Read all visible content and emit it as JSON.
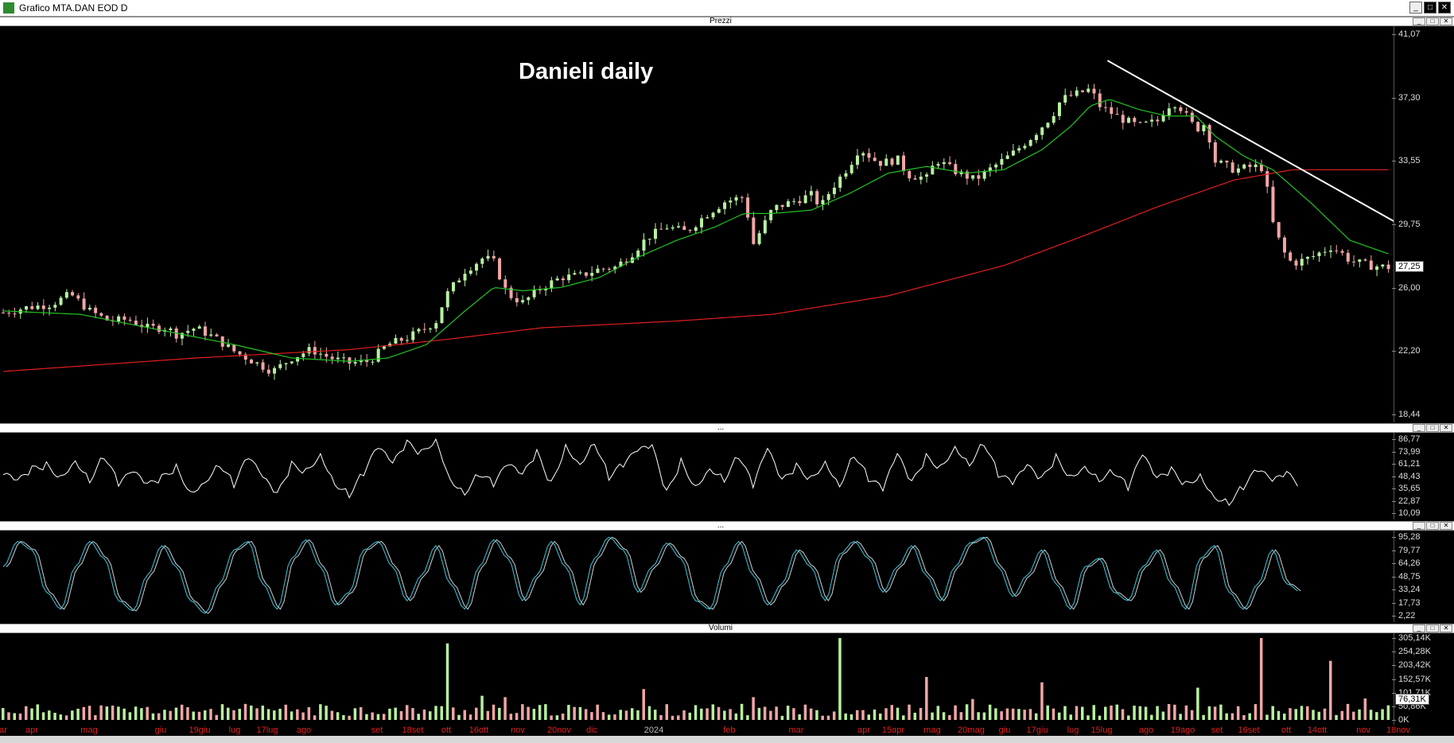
{
  "window": {
    "title": "Grafico MTA.DAN EOD D",
    "min_btn": "_",
    "max_btn": "□",
    "close_btn": "✕"
  },
  "panel_btns": {
    "min": "_",
    "max": "□",
    "close": "✕"
  },
  "panels": {
    "price": {
      "label": "Prezzi"
    },
    "rsi": {
      "label": "..."
    },
    "stoch": {
      "label": "..."
    },
    "volume": {
      "label": "Volumi"
    }
  },
  "chart_data": [
    {
      "type": "candlestick",
      "title": "Danieli daily",
      "yticks": [
        "41,07",
        "37,30",
        "33,55",
        "29,75",
        "26,00",
        "22,20",
        "18,44"
      ],
      "ylim": [
        18.44,
        41.07
      ],
      "current_value": "27,25",
      "colors": {
        "up": "#b8f0a0",
        "down": "#f0a6a6",
        "sma_short": "#22c422",
        "sma_long": "#e01f1f",
        "trendline": "#ffffff"
      },
      "close_approx": [
        [
          0,
          24.5
        ],
        [
          12,
          24.8
        ],
        [
          25,
          25.0
        ],
        [
          35,
          25.6
        ],
        [
          45,
          24.6
        ],
        [
          55,
          24.0
        ],
        [
          65,
          24.1
        ],
        [
          75,
          23.6
        ],
        [
          85,
          23.6
        ],
        [
          90,
          23.2
        ],
        [
          100,
          23.6
        ],
        [
          110,
          23.0
        ],
        [
          120,
          22.2
        ],
        [
          130,
          21.6
        ],
        [
          140,
          21.0
        ],
        [
          150,
          21.8
        ],
        [
          160,
          22.3
        ],
        [
          170,
          21.8
        ],
        [
          180,
          21.5
        ],
        [
          190,
          21.6
        ],
        [
          200,
          22.6
        ],
        [
          210,
          23.0
        ],
        [
          220,
          23.6
        ],
        [
          225,
          24.0
        ],
        [
          230,
          25.5
        ],
        [
          240,
          27.0
        ],
        [
          250,
          27.8
        ],
        [
          255,
          27.5
        ],
        [
          262,
          25.6
        ],
        [
          270,
          25.1
        ],
        [
          280,
          26.0
        ],
        [
          290,
          26.6
        ],
        [
          300,
          26.7
        ],
        [
          310,
          27.1
        ],
        [
          318,
          27.2
        ],
        [
          325,
          27.8
        ],
        [
          335,
          29.0
        ],
        [
          345,
          29.6
        ],
        [
          355,
          29.3
        ],
        [
          365,
          30.3
        ],
        [
          375,
          31.1
        ],
        [
          385,
          31.4
        ],
        [
          390,
          28.6
        ],
        [
          400,
          30.7
        ],
        [
          410,
          31.1
        ],
        [
          420,
          31.5
        ],
        [
          425,
          30.8
        ],
        [
          430,
          31.8
        ],
        [
          440,
          33.3
        ],
        [
          445,
          34.3
        ],
        [
          455,
          33.4
        ],
        [
          465,
          33.6
        ],
        [
          470,
          32.7
        ],
        [
          480,
          32.5
        ],
        [
          485,
          33.6
        ],
        [
          495,
          32.9
        ],
        [
          505,
          32.4
        ],
        [
          515,
          33.2
        ],
        [
          525,
          34.0
        ],
        [
          535,
          35.0
        ],
        [
          545,
          36.2
        ],
        [
          550,
          37.2
        ],
        [
          560,
          37.6
        ],
        [
          565,
          37.8
        ],
        [
          570,
          36.8
        ],
        [
          580,
          36.1
        ],
        [
          590,
          35.6
        ],
        [
          600,
          35.9
        ],
        [
          605,
          36.8
        ],
        [
          610,
          37.0
        ],
        [
          620,
          35.4
        ],
        [
          625,
          35.8
        ],
        [
          630,
          33.5
        ],
        [
          640,
          33.0
        ],
        [
          650,
          33.2
        ],
        [
          655,
          33.1
        ],
        [
          660,
          29.8
        ],
        [
          665,
          28.2
        ],
        [
          670,
          27.4
        ],
        [
          680,
          27.8
        ],
        [
          690,
          28.4
        ],
        [
          695,
          28.1
        ],
        [
          700,
          27.6
        ],
        [
          710,
          27.3
        ],
        [
          720,
          27.2
        ]
      ],
      "sma_short_approx": [
        [
          0,
          24.6
        ],
        [
          40,
          24.4
        ],
        [
          80,
          23.5
        ],
        [
          120,
          22.6
        ],
        [
          150,
          21.8
        ],
        [
          180,
          21.6
        ],
        [
          200,
          21.8
        ],
        [
          220,
          22.6
        ],
        [
          240,
          24.6
        ],
        [
          255,
          26.0
        ],
        [
          270,
          25.8
        ],
        [
          290,
          26.0
        ],
        [
          310,
          26.6
        ],
        [
          330,
          27.8
        ],
        [
          350,
          28.8
        ],
        [
          370,
          29.6
        ],
        [
          385,
          30.4
        ],
        [
          400,
          30.4
        ],
        [
          420,
          30.6
        ],
        [
          440,
          31.6
        ],
        [
          460,
          32.8
        ],
        [
          480,
          33.2
        ],
        [
          500,
          32.8
        ],
        [
          520,
          33.0
        ],
        [
          540,
          34.2
        ],
        [
          555,
          35.6
        ],
        [
          565,
          36.8
        ],
        [
          575,
          37.2
        ],
        [
          590,
          36.6
        ],
        [
          605,
          36.2
        ],
        [
          620,
          36.2
        ],
        [
          630,
          35.0
        ],
        [
          645,
          33.8
        ],
        [
          660,
          33.0
        ],
        [
          680,
          31.0
        ],
        [
          700,
          28.8
        ],
        [
          720,
          28.0
        ]
      ],
      "sma_long_approx": [
        [
          0,
          21.0
        ],
        [
          100,
          21.8
        ],
        [
          180,
          22.3
        ],
        [
          230,
          22.9
        ],
        [
          280,
          23.6
        ],
        [
          350,
          24.0
        ],
        [
          400,
          24.4
        ],
        [
          460,
          25.5
        ],
        [
          520,
          27.3
        ],
        [
          560,
          29.0
        ],
        [
          600,
          30.8
        ],
        [
          640,
          32.4
        ],
        [
          670,
          33.0
        ],
        [
          720,
          33.0
        ]
      ],
      "trendline": [
        [
          574,
          39.5
        ],
        [
          753,
          28.0
        ]
      ]
    },
    {
      "type": "line",
      "name": "RSI",
      "yticks": [
        "86,77",
        "73,99",
        "61,21",
        "48,43",
        "35,65",
        "22,87",
        "10,09"
      ],
      "ylim": [
        10.09,
        86.77
      ],
      "values_approx": [
        50,
        42,
        55,
        60,
        48,
        66,
        45,
        70,
        40,
        52,
        38,
        46,
        58,
        32,
        44,
        62,
        40,
        68,
        46,
        28,
        60,
        54,
        72,
        42,
        30,
        52,
        78,
        60,
        82,
        72,
        88,
        46,
        32,
        52,
        40,
        60,
        48,
        72,
        40,
        80,
        62,
        85,
        48,
        60,
        74,
        78,
        30,
        64,
        38,
        58,
        46,
        70,
        38,
        76,
        42,
        58,
        46,
        64,
        40,
        72,
        46,
        34,
        70,
        40,
        68,
        58,
        80,
        62,
        84,
        50,
        40,
        58,
        44,
        68,
        48,
        60,
        46,
        54,
        36,
        70,
        44,
        54,
        40,
        50,
        28,
        22,
        38,
        55,
        42,
        50,
        38
      ]
    },
    {
      "type": "line",
      "name": "Stochastic",
      "yticks": [
        "95,28",
        "79,77",
        "64,26",
        "48,75",
        "33,24",
        "17,73",
        "2,22"
      ],
      "ylim": [
        2.22,
        95.28
      ],
      "values_approx": [
        60,
        90,
        80,
        30,
        10,
        60,
        90,
        70,
        20,
        8,
        50,
        85,
        60,
        20,
        5,
        40,
        80,
        90,
        40,
        10,
        70,
        92,
        60,
        15,
        30,
        80,
        90,
        60,
        20,
        50,
        85,
        40,
        10,
        60,
        92,
        70,
        20,
        50,
        90,
        60,
        15,
        70,
        95,
        80,
        30,
        60,
        88,
        70,
        20,
        10,
        60,
        90,
        50,
        15,
        40,
        80,
        60,
        20,
        75,
        90,
        70,
        30,
        60,
        85,
        50,
        20,
        60,
        88,
        95,
        60,
        25,
        50,
        80,
        40,
        10,
        60,
        70,
        30,
        20,
        60,
        80,
        40,
        10,
        70,
        85,
        30,
        10,
        40,
        80,
        40,
        30
      ]
    },
    {
      "type": "bar",
      "name": "Volumi",
      "yticks": [
        "305,14K",
        "254,28K",
        "203,42K",
        "152,57K",
        "101,71K",
        "50,86K",
        "0K"
      ],
      "ylim": [
        0,
        305.14
      ],
      "current_value": "76,31K"
    }
  ],
  "xaxis": {
    "labels": [
      {
        "t": "ar",
        "x": 4
      },
      {
        "t": "apr",
        "x": 40
      },
      {
        "t": "mag",
        "x": 112
      },
      {
        "t": "giu",
        "x": 202
      },
      {
        "t": "19giu",
        "x": 251
      },
      {
        "t": "lug",
        "x": 295
      },
      {
        "t": "17lug",
        "x": 336
      },
      {
        "t": "ago",
        "x": 382
      },
      {
        "t": "set",
        "x": 474
      },
      {
        "t": "18set",
        "x": 519
      },
      {
        "t": "ott",
        "x": 561
      },
      {
        "t": "16ott",
        "x": 602
      },
      {
        "t": "nov",
        "x": 651
      },
      {
        "t": "20nov",
        "x": 703
      },
      {
        "t": "dic",
        "x": 744
      },
      {
        "t": "2024",
        "x": 822,
        "year": true
      },
      {
        "t": "feb",
        "x": 917
      },
      {
        "t": "mar",
        "x": 1001
      },
      {
        "t": "apr",
        "x": 1086
      },
      {
        "t": "15apr",
        "x": 1123
      },
      {
        "t": "mag",
        "x": 1172
      },
      {
        "t": "20mag",
        "x": 1221
      },
      {
        "t": "giu",
        "x": 1263
      },
      {
        "t": "17giu",
        "x": 1304
      },
      {
        "t": "lug",
        "x": 1349
      },
      {
        "t": "15lug",
        "x": 1385
      },
      {
        "t": "ago",
        "x": 1441
      },
      {
        "t": "19ago",
        "x": 1487
      },
      {
        "t": "set",
        "x": 1530
      },
      {
        "t": "16set",
        "x": 1570
      },
      {
        "t": "ott",
        "x": 1617
      },
      {
        "t": "14ott",
        "x": 1656
      },
      {
        "t": "nov",
        "x": 1714
      },
      {
        "t": "18nov",
        "x": 1758
      }
    ]
  }
}
